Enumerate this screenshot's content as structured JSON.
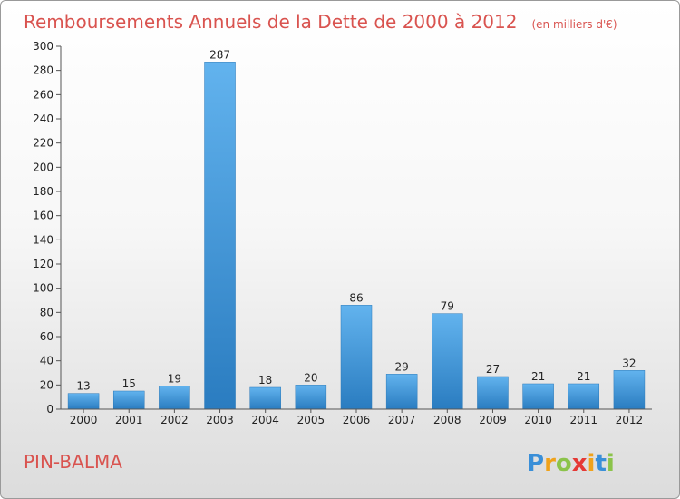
{
  "chart_data": {
    "type": "bar",
    "title": "Remboursements Annuels de la Dette de 2000 à 2012",
    "units": "(en milliers d'€)",
    "categories": [
      "2000",
      "2001",
      "2002",
      "2003",
      "2004",
      "2005",
      "2006",
      "2007",
      "2008",
      "2009",
      "2010",
      "2011",
      "2012"
    ],
    "values": [
      13,
      15,
      19,
      287,
      18,
      20,
      86,
      29,
      79,
      27,
      21,
      21,
      32
    ],
    "ylim": [
      0,
      300
    ],
    "yticks": [
      0,
      20,
      40,
      60,
      80,
      100,
      120,
      140,
      160,
      180,
      200,
      220,
      240,
      260,
      280,
      300
    ],
    "xlabel": "",
    "ylabel": "",
    "grid": false,
    "bar_color": "#3f97dc"
  },
  "place": "PIN-BALMA",
  "brand": {
    "letters": [
      "P",
      "r",
      "o",
      "x",
      "i",
      "t",
      "i"
    ],
    "colors": [
      "#3a8fd8",
      "#f0a21a",
      "#8bc34a",
      "#e53935",
      "#f0a21a",
      "#3a8fd8",
      "#8bc34a"
    ]
  }
}
